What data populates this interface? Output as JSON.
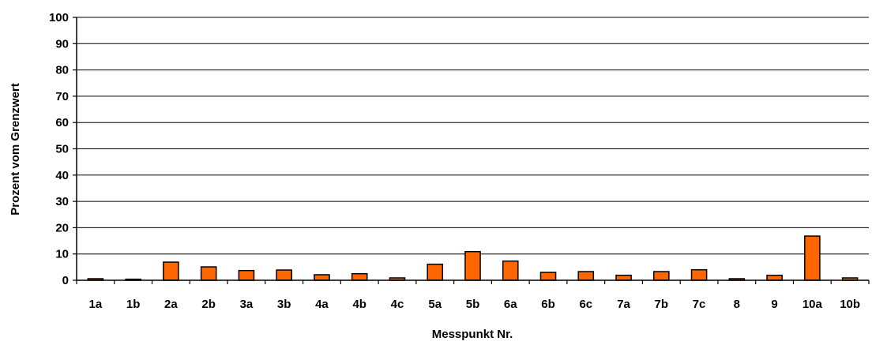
{
  "chart_data": {
    "type": "bar",
    "title": "",
    "xlabel": "Messpunkt Nr.",
    "ylabel": "Prozent vom Grenzwert",
    "ylim": [
      0,
      100
    ],
    "yticks": [
      0,
      10,
      20,
      30,
      40,
      50,
      60,
      70,
      80,
      90,
      100
    ],
    "grid": true,
    "categories": [
      "1a",
      "1b",
      "2a",
      "2b",
      "3a",
      "3b",
      "4a",
      "4b",
      "4c",
      "5a",
      "5b",
      "6a",
      "6b",
      "6c",
      "7a",
      "7b",
      "7c",
      "8",
      "9",
      "10a",
      "10b"
    ],
    "values": [
      0.6,
      0.4,
      6.9,
      5.1,
      3.7,
      3.9,
      2.1,
      2.5,
      0.9,
      6.1,
      10.9,
      7.3,
      3.0,
      3.3,
      1.9,
      3.3,
      4.0,
      0.6,
      1.9,
      16.8,
      0.9
    ],
    "colors": {
      "bar": "#ff6600",
      "bar_stroke": "#000000",
      "grid": "#000000"
    }
  }
}
